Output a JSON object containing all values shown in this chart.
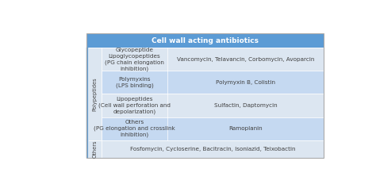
{
  "title": "Cell wall acting antibiotics",
  "title_bg": "#5b9bd5",
  "title_color": "white",
  "header_fontsize": 6.5,
  "cell_fontsize": 5.2,
  "rotated_label_fontsize": 4.8,
  "row_bg_dark": "#c5d9f1",
  "row_bg_light": "#dce6f1",
  "bg_overall": "#dce6f1",
  "border_color": "#ffffff",
  "text_color": "#404040",
  "left_bar_color": "#5b9bd5",
  "rows": [
    {
      "group": "Polypeptides",
      "subtype": "Glycopeptide\nLipoglycopeptides\n(PG chain elongation\ninhibition)",
      "examples": "Vancomycin, Telavancin, Corbomycin, Avoparcin",
      "row_bg": "#dce6f1"
    },
    {
      "group": "Polypeptides",
      "subtype": "Polymyxins\n(LPS binding)",
      "examples": "Polymyxin B, Colistin",
      "row_bg": "#c5d9f1"
    },
    {
      "group": "Polypeptides",
      "subtype": "Lipopeptides\n(Cell wall perforation and\ndepolarization)",
      "examples": "Sulfactin, Daptomycin",
      "row_bg": "#dce6f1"
    },
    {
      "group": "Polypeptides",
      "subtype": "Others\n(PG elongation and crosslink\ninhibition)",
      "examples": "Ramoplanin",
      "row_bg": "#c5d9f1"
    },
    {
      "group": "Others",
      "subtype": "",
      "examples": "Fosfomycin, Cycloserine, Bacitracin, Isoniazid, Teixobactin",
      "row_bg": "#dce6f1"
    }
  ],
  "figsize": [
    4.74,
    2.37
  ],
  "dpi": 100
}
